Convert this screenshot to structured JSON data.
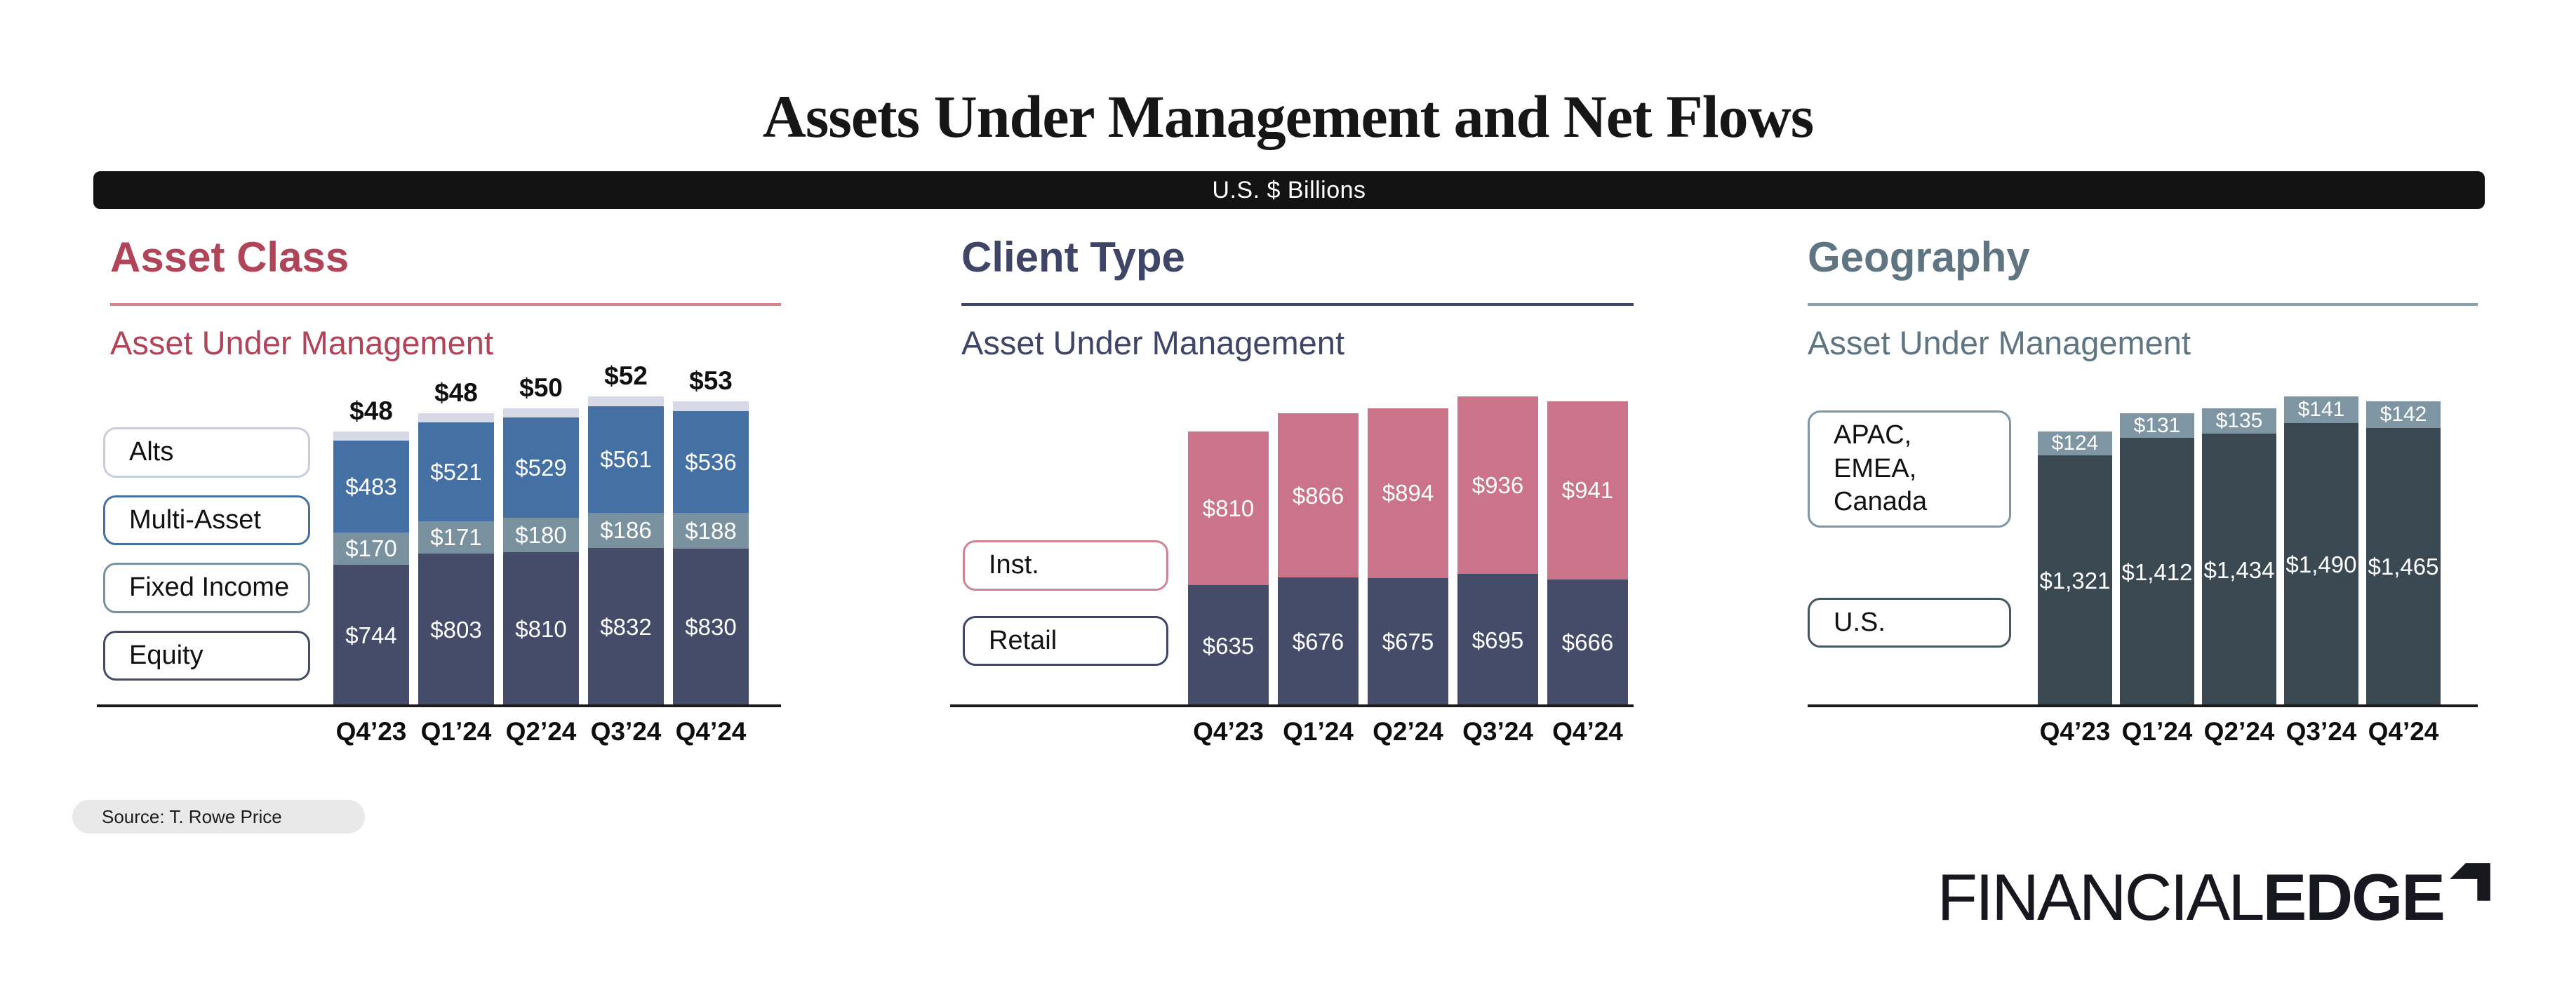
{
  "title": "Assets Under Management and Net Flows",
  "unit_band": "U.S. $ Billions",
  "source": "Source: T. Rowe Price",
  "logo": {
    "financial": "FINANCIAL",
    "edge": "EDGE",
    "icon": "corner-arrow-icon"
  },
  "colors": {
    "band_background": "#131313",
    "asset_class_accent": "#B04459",
    "asset_class_rule": "#D9838F",
    "client_type_accent": "#3E4566",
    "geography_accent": "#5F7682",
    "geography_rule": "#8CA0AB",
    "equity_navy": "#454C69",
    "fixed_income_gray": "#7A919F",
    "multi_asset_blue": "#4470A4",
    "alts_lavender": "#D6DAE6",
    "inst_pink": "#CB7389",
    "us_dark_slate": "#3A4852",
    "apac_gray_blue": "#7E96A4"
  },
  "chart_data": [
    {
      "type": "bar",
      "title": "Asset Class",
      "subtitle": "Asset Under Management",
      "accent": "#B04459",
      "rule_color": "#D9838F",
      "stacked": true,
      "grid": false,
      "legend_position": "left",
      "categories": [
        "Q4’23",
        "Q1’24",
        "Q2’24",
        "Q3’24",
        "Q4’24"
      ],
      "series": [
        {
          "name": "Equity",
          "color": "#454C69",
          "values": [
            744,
            803,
            810,
            832,
            830
          ]
        },
        {
          "name": "Fixed Income",
          "color": "#7A919F",
          "values": [
            170,
            171,
            180,
            186,
            188
          ]
        },
        {
          "name": "Multi-Asset",
          "color": "#4470A4",
          "values": [
            483,
            521,
            529,
            561,
            536
          ]
        },
        {
          "name": "Alts",
          "color": "#D6DAE6",
          "label_above": true,
          "values": [
            48,
            48,
            50,
            52,
            53
          ]
        }
      ],
      "legend": [
        {
          "label": "Alts",
          "border": "#C9CEDF"
        },
        {
          "label": "Multi-Asset",
          "border": "#4470A4"
        },
        {
          "label": "Fixed Income",
          "border": "#7A919F"
        },
        {
          "label": "Equity",
          "border": "#454C69"
        }
      ]
    },
    {
      "type": "bar",
      "title": "Client Type",
      "subtitle": "Asset Under Management",
      "accent": "#3E4566",
      "rule_color": "#3E4566",
      "stacked": true,
      "grid": false,
      "legend_position": "left",
      "categories": [
        "Q4’23",
        "Q1’24",
        "Q2’24",
        "Q3’24",
        "Q4’24"
      ],
      "series": [
        {
          "name": "Retail",
          "color": "#454C69",
          "values": [
            635,
            676,
            675,
            695,
            666
          ]
        },
        {
          "name": "Inst.",
          "color": "#CB7389",
          "values": [
            810,
            866,
            894,
            936,
            941
          ]
        }
      ],
      "legend": [
        {
          "label": "Inst.",
          "border": "#CF8496"
        },
        {
          "label": "Retail",
          "border": "#3F4668"
        }
      ]
    },
    {
      "type": "bar",
      "title": "Geography",
      "subtitle": "Asset Under Management",
      "accent": "#5F7682",
      "rule_color": "#8CA0AB",
      "stacked": true,
      "grid": false,
      "legend_position": "left",
      "categories": [
        "Q4’23",
        "Q1’24",
        "Q2’24",
        "Q3’24",
        "Q4’24"
      ],
      "series": [
        {
          "name": "U.S.",
          "color": "#3A4852",
          "values": [
            1321,
            1412,
            1434,
            1490,
            1465
          ]
        },
        {
          "name": "APAC, EMEA, Canada",
          "color": "#7E96A4",
          "values": [
            124,
            131,
            135,
            141,
            142
          ]
        }
      ],
      "legend": [
        {
          "label": "APAC, EMEA,\nCanada",
          "border": "#7E96A4"
        },
        {
          "label": "U.S.",
          "border": "#46565F"
        }
      ]
    }
  ]
}
